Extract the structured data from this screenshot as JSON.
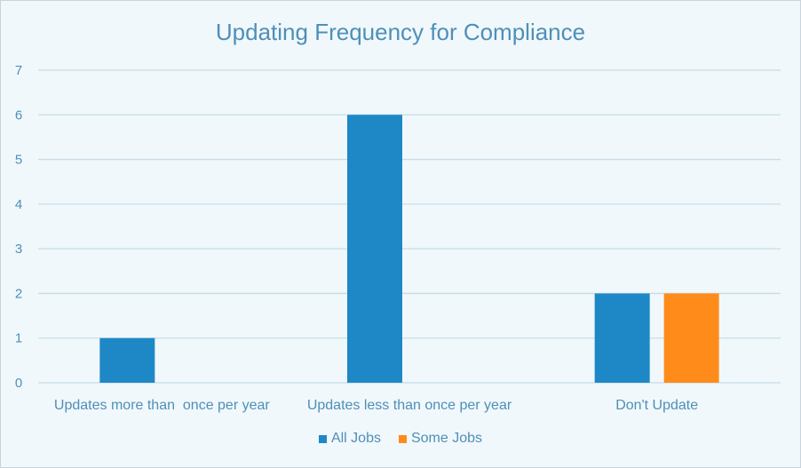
{
  "chart_data": {
    "type": "bar",
    "title": "Updating Frequency for Compliance",
    "categories": [
      "Updates more than  once per year",
      "Updates less than once per year",
      "Don't Update"
    ],
    "series": [
      {
        "name": "All Jobs",
        "values": [
          1,
          6,
          2
        ],
        "color": "#1e88c7"
      },
      {
        "name": "Some Jobs",
        "values": [
          null,
          null,
          2
        ],
        "color": "#ff8c1a"
      }
    ],
    "ylim": [
      0,
      7
    ],
    "yticks": [
      0,
      1,
      2,
      3,
      4,
      5,
      6,
      7
    ],
    "grid": true,
    "legend": "bottom",
    "colors": {
      "text": "#4f8fb7",
      "grid": "#c8dce6",
      "background": "#f0f8fc"
    }
  }
}
